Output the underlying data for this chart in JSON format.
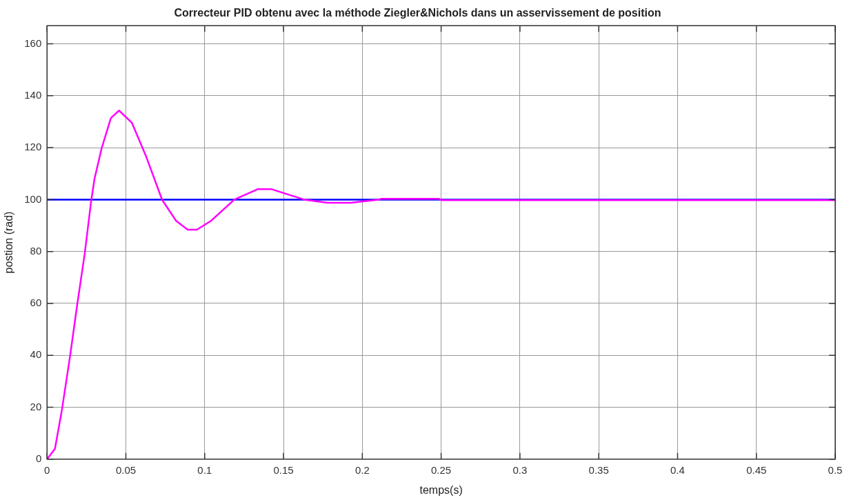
{
  "chart_data": {
    "type": "line",
    "title": "Correcteur PID obtenu avec la méthode Ziegler&Nichols dans un asservissement de position",
    "xlabel": "temps(s)",
    "ylabel": "postion (rad)",
    "xlim": [
      0,
      0.5
    ],
    "xticks": [
      0,
      0.05,
      0.1,
      0.15,
      0.2,
      0.25,
      0.3,
      0.35,
      0.4,
      0.45,
      0.5
    ],
    "ylim": [
      0,
      167
    ],
    "yticks": [
      0,
      20,
      40,
      60,
      80,
      100,
      120,
      140,
      160
    ],
    "grid": true,
    "legend": false,
    "marker": "none",
    "line_style": "solid",
    "series": [
      {
        "color": "#ff00ff",
        "x": [
          0,
          0.005,
          0.0094,
          0.0146,
          0.0191,
          0.0239,
          0.0279,
          0.0301,
          0.0346,
          0.0405,
          0.0457,
          0.0538,
          0.0626,
          0.073,
          0.0819,
          0.0892,
          0.0951,
          0.104,
          0.1188,
          0.1336,
          0.1424,
          0.1631,
          0.1779,
          0.1927,
          0.2104,
          0.2119,
          0.2488,
          0.2503,
          0.5
        ],
        "values": [
          0,
          4,
          18.9,
          39.7,
          59.4,
          79.2,
          99.1,
          108,
          119.7,
          131.4,
          134.3,
          129.6,
          117,
          99.9,
          91.8,
          88.4,
          88.4,
          91.8,
          100,
          104,
          104,
          100,
          98.8,
          98.8,
          100,
          100.3,
          100.3,
          99.8,
          99.8
        ]
      },
      {
        "color": "#0000ff",
        "x": [
          0,
          0.5
        ],
        "values": [
          100,
          100
        ]
      }
    ]
  }
}
